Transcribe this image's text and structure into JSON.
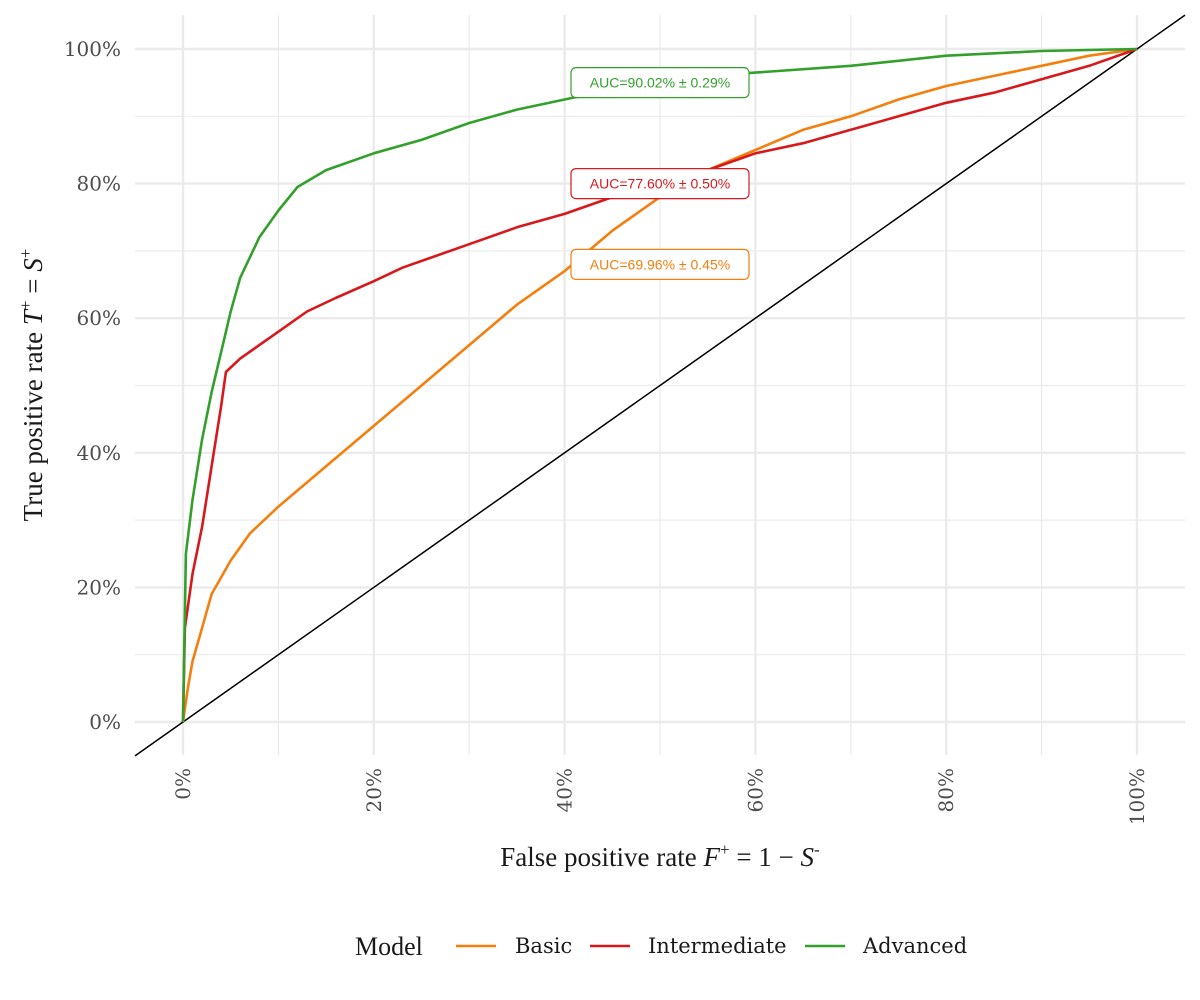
{
  "chart_data": {
    "type": "line",
    "xlabel": {
      "main": "False positive rate ",
      "var": "F",
      "sup": "+",
      "rest": "  = 1 − ",
      "var2": "S",
      "sup2": "-"
    },
    "ylabel": {
      "main": "True positive rate ",
      "var": "T",
      "sup": "+",
      "rest": "  = ",
      "var2": "S",
      "sup2": "+"
    },
    "xlim": [
      -0.05,
      1.05
    ],
    "ylim": [
      -0.05,
      1.05
    ],
    "x_ticks": [
      "0%",
      "20%",
      "40%",
      "60%",
      "80%",
      "100%"
    ],
    "y_ticks": [
      "0%",
      "20%",
      "40%",
      "60%",
      "80%",
      "100%"
    ],
    "grid": true,
    "legend": {
      "title": "Model",
      "position": "bottom"
    },
    "diagonal_reference": true,
    "series": [
      {
        "name": "Basic",
        "color": "#f47f0e",
        "auc_label": "AUC=69.96% ± 0.45%",
        "label_at": [
          0.5,
          0.68
        ],
        "points": [
          [
            0,
            0
          ],
          [
            0.005,
            0.05
          ],
          [
            0.01,
            0.09
          ],
          [
            0.02,
            0.14
          ],
          [
            0.03,
            0.19
          ],
          [
            0.05,
            0.24
          ],
          [
            0.07,
            0.28
          ],
          [
            0.1,
            0.32
          ],
          [
            0.15,
            0.38
          ],
          [
            0.2,
            0.44
          ],
          [
            0.25,
            0.5
          ],
          [
            0.3,
            0.56
          ],
          [
            0.35,
            0.62
          ],
          [
            0.4,
            0.67
          ],
          [
            0.45,
            0.73
          ],
          [
            0.5,
            0.78
          ],
          [
            0.55,
            0.82
          ],
          [
            0.6,
            0.85
          ],
          [
            0.65,
            0.88
          ],
          [
            0.7,
            0.9
          ],
          [
            0.75,
            0.925
          ],
          [
            0.8,
            0.945
          ],
          [
            0.85,
            0.96
          ],
          [
            0.9,
            0.975
          ],
          [
            0.95,
            0.99
          ],
          [
            1,
            1
          ]
        ]
      },
      {
        "name": "Intermediate",
        "color": "#d7191c",
        "auc_label": "AUC=77.60% ± 0.50%",
        "label_at": [
          0.5,
          0.8
        ],
        "points": [
          [
            0,
            0
          ],
          [
            0.002,
            0.14
          ],
          [
            0.01,
            0.22
          ],
          [
            0.02,
            0.29
          ],
          [
            0.03,
            0.38
          ],
          [
            0.04,
            0.47
          ],
          [
            0.045,
            0.52
          ],
          [
            0.06,
            0.54
          ],
          [
            0.08,
            0.56
          ],
          [
            0.1,
            0.58
          ],
          [
            0.13,
            0.61
          ],
          [
            0.16,
            0.63
          ],
          [
            0.2,
            0.655
          ],
          [
            0.23,
            0.675
          ],
          [
            0.26,
            0.69
          ],
          [
            0.3,
            0.71
          ],
          [
            0.35,
            0.735
          ],
          [
            0.4,
            0.755
          ],
          [
            0.45,
            0.78
          ],
          [
            0.5,
            0.8
          ],
          [
            0.55,
            0.82
          ],
          [
            0.6,
            0.845
          ],
          [
            0.65,
            0.86
          ],
          [
            0.7,
            0.88
          ],
          [
            0.75,
            0.9
          ],
          [
            0.8,
            0.92
          ],
          [
            0.85,
            0.935
          ],
          [
            0.9,
            0.955
          ],
          [
            0.95,
            0.975
          ],
          [
            1,
            1
          ]
        ]
      },
      {
        "name": "Advanced",
        "color": "#33a02c",
        "auc_label": "AUC=90.02% ± 0.29%",
        "label_at": [
          0.5,
          0.95
        ],
        "points": [
          [
            0,
            0
          ],
          [
            0.003,
            0.25
          ],
          [
            0.01,
            0.33
          ],
          [
            0.02,
            0.42
          ],
          [
            0.03,
            0.49
          ],
          [
            0.04,
            0.55
          ],
          [
            0.05,
            0.61
          ],
          [
            0.06,
            0.66
          ],
          [
            0.08,
            0.72
          ],
          [
            0.1,
            0.76
          ],
          [
            0.12,
            0.795
          ],
          [
            0.15,
            0.82
          ],
          [
            0.2,
            0.845
          ],
          [
            0.25,
            0.865
          ],
          [
            0.3,
            0.89
          ],
          [
            0.35,
            0.91
          ],
          [
            0.4,
            0.925
          ],
          [
            0.45,
            0.94
          ],
          [
            0.5,
            0.95
          ],
          [
            0.55,
            0.96
          ],
          [
            0.6,
            0.965
          ],
          [
            0.7,
            0.975
          ],
          [
            0.8,
            0.99
          ],
          [
            0.9,
            0.997
          ],
          [
            1,
            1
          ]
        ]
      }
    ]
  }
}
